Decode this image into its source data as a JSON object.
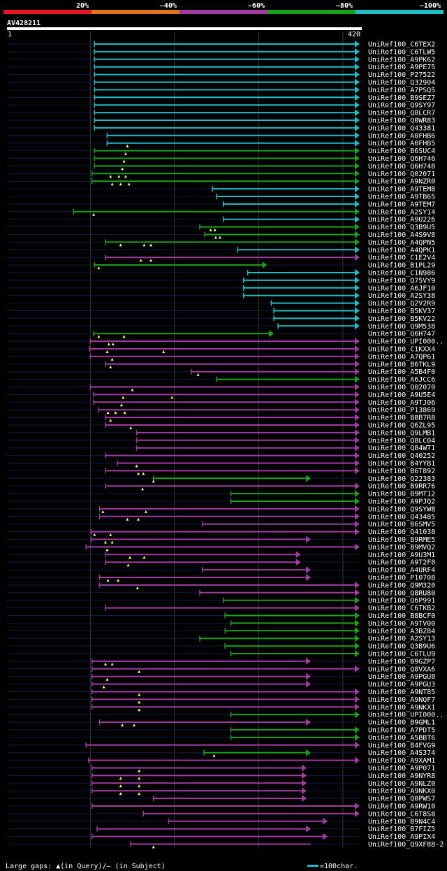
{
  "chart_data": {
    "type": "alignment-overview",
    "query": {
      "name": "AV428211",
      "start": 1,
      "end": 420
    },
    "identity_legend": {
      "bins": [
        {
          "label": "20%",
          "color": "#e8141e"
        },
        {
          "label": "~40%",
          "color": "#e0741e"
        },
        {
          "label": "~60%",
          "color": "#a03ca0"
        },
        {
          "label": "~80%",
          "color": "#1ca01c"
        },
        {
          "label": "~100%",
          "color": "#1ebec8"
        }
      ]
    },
    "gridlines_at": [
      100,
      200,
      300,
      400
    ],
    "footer": {
      "gaps_text": "Large gaps: ▲(in Query)/— (in Subject)",
      "scale_text": "=100char."
    },
    "hits": [
      {
        "label": "UniRef100_C6TEX2",
        "bin": 4,
        "start": 105,
        "end": 420,
        "arrow": true
      },
      {
        "label": "UniRef100_C6TLW5",
        "bin": 4,
        "start": 105,
        "end": 420,
        "arrow": true
      },
      {
        "label": "UniRef100_A9PK62",
        "bin": 4,
        "start": 105,
        "end": 420,
        "arrow": true
      },
      {
        "label": "UniRef100_A9PE75",
        "bin": 4,
        "start": 105,
        "end": 420,
        "arrow": true
      },
      {
        "label": "UniRef100_P27522",
        "bin": 4,
        "start": 105,
        "end": 420,
        "arrow": true
      },
      {
        "label": "UniRef100_Q32904",
        "bin": 4,
        "start": 105,
        "end": 420,
        "arrow": true
      },
      {
        "label": "UniRef100_A7PSQ5",
        "bin": 4,
        "start": 105,
        "end": 420,
        "arrow": true
      },
      {
        "label": "UniRef100_B9SEZ7",
        "bin": 4,
        "start": 105,
        "end": 420,
        "arrow": true
      },
      {
        "label": "UniRef100_Q9SY97",
        "bin": 4,
        "start": 105,
        "end": 420,
        "arrow": true
      },
      {
        "label": "UniRef100_Q8LCR7",
        "bin": 4,
        "start": 105,
        "end": 420,
        "arrow": true
      },
      {
        "label": "UniRef100_Q0WR83",
        "bin": 4,
        "start": 105,
        "end": 420,
        "arrow": true
      },
      {
        "label": "UniRef100_Q43381",
        "bin": 4,
        "start": 105,
        "end": 420,
        "arrow": true
      },
      {
        "label": "UniRef100_A0FHB6",
        "bin": 4,
        "start": 120,
        "end": 420,
        "arrow": true
      },
      {
        "label": "UniRef100_A0FHB5",
        "bin": 4,
        "start": 120,
        "end": 420,
        "arrow": true,
        "gaps": [
          144
        ]
      },
      {
        "label": "UniRef100_B6SUC4",
        "bin": 3,
        "start": 105,
        "end": 420,
        "arrow": true,
        "gaps": [
          142
        ]
      },
      {
        "label": "UniRef100_Q6H746",
        "bin": 3,
        "start": 105,
        "end": 420,
        "arrow": true,
        "gaps": [
          140
        ]
      },
      {
        "label": "UniRef100_Q6H748",
        "bin": 3,
        "start": 105,
        "end": 420,
        "arrow": true,
        "gaps": [
          138
        ]
      },
      {
        "label": "UniRef100_Q02071",
        "bin": 3,
        "start": 102,
        "end": 420,
        "arrow": true,
        "gaps": [
          124,
          134,
          142
        ]
      },
      {
        "label": "UniRef100_A9NZR0",
        "bin": 3,
        "start": 102,
        "end": 420,
        "arrow": true,
        "gaps": [
          126,
          136,
          146
        ]
      },
      {
        "label": "UniRef100_A9TEM8",
        "bin": 4,
        "start": 245,
        "end": 420,
        "arrow": true
      },
      {
        "label": "UniRef100_A9TB65",
        "bin": 4,
        "start": 250,
        "end": 420,
        "arrow": true
      },
      {
        "label": "UniRef100_A9TEM7",
        "bin": 4,
        "start": 258,
        "end": 420,
        "arrow": true
      },
      {
        "label": "UniRef100_A2SY14",
        "bin": 3,
        "start": 80,
        "end": 420,
        "arrow": true,
        "gaps": [
          104
        ]
      },
      {
        "label": "UniRef100_A9U226",
        "bin": 4,
        "start": 258,
        "end": 420,
        "arrow": true
      },
      {
        "label": "UniRef100_Q3B9U5",
        "bin": 3,
        "start": 230,
        "end": 420,
        "arrow": true,
        "gaps": [
          243,
          248
        ]
      },
      {
        "label": "UniRef100_A4S9V8",
        "bin": 3,
        "start": 236,
        "end": 420,
        "arrow": true,
        "gaps": [
          249,
          254
        ]
      },
      {
        "label": "UniRef100_A4QPN5",
        "bin": 3,
        "start": 118,
        "end": 420,
        "arrow": true,
        "gaps": [
          136,
          164,
          172
        ]
      },
      {
        "label": "UniRef100_A4QPK1",
        "bin": 4,
        "start": 275,
        "end": 420,
        "arrow": true
      },
      {
        "label": "UniRef100_C1E2V4",
        "bin": 2,
        "start": 118,
        "end": 420,
        "arrow": true,
        "gaps": [
          160,
          172
        ]
      },
      {
        "label": "UniRef100_B1PL29",
        "bin": 3,
        "start": 105,
        "end": 310,
        "arrow": true,
        "gaps": [
          110
        ]
      },
      {
        "label": "UniRef100_C1N986",
        "bin": 4,
        "start": 287,
        "end": 420,
        "arrow": true
      },
      {
        "label": "UniRef100_Q75VY9",
        "bin": 4,
        "start": 282,
        "end": 420,
        "arrow": true
      },
      {
        "label": "UniRef100_A6JF10",
        "bin": 4,
        "start": 282,
        "end": 420,
        "arrow": true
      },
      {
        "label": "UniRef100_A2SY38",
        "bin": 4,
        "start": 282,
        "end": 420,
        "arrow": true
      },
      {
        "label": "UniRef100_Q2V2R9",
        "bin": 4,
        "start": 315,
        "end": 420,
        "arrow": true
      },
      {
        "label": "UniRef100_B5KV37",
        "bin": 4,
        "start": 318,
        "end": 420,
        "arrow": true
      },
      {
        "label": "UniRef100_B5KV22",
        "bin": 4,
        "start": 318,
        "end": 420,
        "arrow": true
      },
      {
        "label": "UniRef100_Q9M538",
        "bin": 4,
        "start": 323,
        "end": 420,
        "arrow": true
      },
      {
        "label": "UniRef100_Q6H747",
        "bin": 3,
        "start": 104,
        "end": 318,
        "arrow": true,
        "gaps": [
          110,
          140
        ]
      },
      {
        "label": "UniRef100_UPI000..",
        "bin": 2,
        "start": 100,
        "end": 420,
        "arrow": true,
        "gaps": [
          122,
          127
        ]
      },
      {
        "label": "UniRef100_C1KXX4",
        "bin": 2,
        "start": 99,
        "end": 420,
        "arrow": true,
        "gaps": [
          120,
          187
        ]
      },
      {
        "label": "UniRef100_A7QP61",
        "bin": 2,
        "start": 100,
        "end": 420,
        "arrow": true,
        "gaps": [
          126
        ]
      },
      {
        "label": "UniRef100_B6TKL9",
        "bin": 2,
        "start": 118,
        "end": 420,
        "arrow": true,
        "gaps": [
          124
        ]
      },
      {
        "label": "UniRef100_A5B4F0",
        "bin": 2,
        "start": 220,
        "end": 420,
        "arrow": true,
        "gaps": [
          228
        ]
      },
      {
        "label": "UniRef100_A6JCC6",
        "bin": 3,
        "start": 250,
        "end": 420,
        "arrow": true
      },
      {
        "label": "UniRef100_Q02070",
        "bin": 2,
        "start": 100,
        "end": 420,
        "arrow": true,
        "gaps": [
          150
        ]
      },
      {
        "label": "UniRef100_A9U5E4",
        "bin": 2,
        "start": 104,
        "end": 420,
        "arrow": true,
        "gaps": [
          139,
          197
        ]
      },
      {
        "label": "UniRef100_A9TJ06",
        "bin": 2,
        "start": 104,
        "end": 420,
        "arrow": true,
        "gaps": [
          137
        ]
      },
      {
        "label": "UniRef100_P13869",
        "bin": 2,
        "start": 110,
        "end": 420,
        "arrow": true,
        "gaps": [
          121,
          130,
          141
        ]
      },
      {
        "label": "UniRef100_B8B7R8",
        "bin": 2,
        "start": 118,
        "end": 420,
        "arrow": true,
        "gaps": [
          124
        ]
      },
      {
        "label": "UniRef100_Q6ZL95",
        "bin": 2,
        "start": 118,
        "end": 420,
        "arrow": true,
        "gaps": [
          148
        ]
      },
      {
        "label": "UniRef100_Q9LMB1",
        "bin": 2,
        "start": 155,
        "end": 420,
        "arrow": true
      },
      {
        "label": "UniRef100_Q8LC04",
        "bin": 2,
        "start": 155,
        "end": 420,
        "arrow": true
      },
      {
        "label": "UniRef100_Q84WT1",
        "bin": 2,
        "start": 155,
        "end": 420,
        "arrow": true
      },
      {
        "label": "UniRef100_Q40252",
        "bin": 2,
        "start": 118,
        "end": 420,
        "arrow": true
      },
      {
        "label": "UniRef100_B4YYB1",
        "bin": 2,
        "start": 132,
        "end": 420,
        "arrow": true,
        "gaps": [
          155
        ]
      },
      {
        "label": "UniRef100_B6T892",
        "bin": 2,
        "start": 118,
        "end": 420,
        "arrow": true,
        "gaps": [
          157,
          163
        ]
      },
      {
        "label": "UniRef100_Q22383",
        "bin": 3,
        "start": 175,
        "end": 362,
        "arrow": true,
        "gaps": [
          175
        ]
      },
      {
        "label": "UniRef100_B9RR76",
        "bin": 2,
        "start": 118,
        "end": 420,
        "arrow": true,
        "gaps": [
          162
        ]
      },
      {
        "label": "UniRef100_B9MT12",
        "bin": 3,
        "start": 267,
        "end": 420,
        "arrow": true
      },
      {
        "label": "UniRef100_A9PJQ2",
        "bin": 3,
        "start": 267,
        "end": 420,
        "arrow": true
      },
      {
        "label": "UniRef100_Q9SYW8",
        "bin": 2,
        "start": 111,
        "end": 420,
        "arrow": true,
        "gaps": [
          115,
          166
        ]
      },
      {
        "label": "UniRef100_Q43485",
        "bin": 2,
        "start": 111,
        "end": 420,
        "arrow": true,
        "gaps": [
          144,
          157
        ]
      },
      {
        "label": "UniRef100_B6SMV5",
        "bin": 2,
        "start": 233,
        "end": 420,
        "arrow": true
      },
      {
        "label": "UniRef100_Q41038",
        "bin": 2,
        "start": 101,
        "end": 420,
        "arrow": true,
        "gaps": [
          105,
          124
        ]
      },
      {
        "label": "UniRef100_B9RME5",
        "bin": 2,
        "start": 101,
        "end": 362,
        "arrow": true,
        "gaps": [
          118,
          126
        ]
      },
      {
        "label": "UniRef100_B9MVQ2",
        "bin": 2,
        "start": 95,
        "end": 420,
        "arrow": true,
        "gaps": [
          120
        ]
      },
      {
        "label": "UniRef100_A9U3M1",
        "bin": 2,
        "start": 118,
        "end": 350,
        "arrow": true,
        "gaps": [
          147,
          164
        ]
      },
      {
        "label": "UniRef100_A9T2F8",
        "bin": 2,
        "start": 118,
        "end": 350,
        "arrow": true,
        "gaps": [
          145
        ]
      },
      {
        "label": "UniRef100_A4URF4",
        "bin": 2,
        "start": 233,
        "end": 362,
        "arrow": true
      },
      {
        "label": "UniRef100_P10708",
        "bin": 2,
        "start": 111,
        "end": 362,
        "arrow": true,
        "gaps": [
          121,
          133
        ]
      },
      {
        "label": "UniRef100_Q9M320",
        "bin": 2,
        "start": 111,
        "end": 420,
        "arrow": true,
        "gaps": [
          156
        ]
      },
      {
        "label": "UniRef100_Q8RU80",
        "bin": 2,
        "start": 230,
        "end": 420,
        "arrow": true
      },
      {
        "label": "UniRef100_Q6P991",
        "bin": 3,
        "start": 258,
        "end": 420,
        "arrow": true
      },
      {
        "label": "UniRef100_C6TKB2",
        "bin": 2,
        "start": 118,
        "end": 420,
        "arrow": true
      },
      {
        "label": "UniRef100_B8BCF0",
        "bin": 3,
        "start": 260,
        "end": 420,
        "arrow": true
      },
      {
        "label": "UniRef100_A9TV00",
        "bin": 3,
        "start": 267,
        "end": 420,
        "arrow": true
      },
      {
        "label": "UniRef100_A3BZ84",
        "bin": 3,
        "start": 260,
        "end": 420,
        "arrow": true
      },
      {
        "label": "UniRef100_A2SY13",
        "bin": 3,
        "start": 230,
        "end": 420,
        "arrow": true
      },
      {
        "label": "UniRef100_Q3B9U6",
        "bin": 3,
        "start": 260,
        "end": 420,
        "arrow": true
      },
      {
        "label": "UniRef100_C6TLU9",
        "bin": 3,
        "start": 267,
        "end": 420,
        "arrow": true
      },
      {
        "label": "UniRef100_B9GZP7",
        "bin": 2,
        "start": 102,
        "end": 362,
        "arrow": true,
        "gaps": [
          118,
          126
        ]
      },
      {
        "label": "UniRef100_Q8VXA6",
        "bin": 2,
        "start": 102,
        "end": 420,
        "arrow": true,
        "gaps": [
          158
        ]
      },
      {
        "label": "UniRef100_A9PGU8",
        "bin": 2,
        "start": 102,
        "end": 362,
        "arrow": true,
        "gaps": [
          120
        ]
      },
      {
        "label": "UniRef100_A9PGU3",
        "bin": 2,
        "start": 102,
        "end": 362,
        "arrow": true,
        "gaps": [
          116
        ]
      },
      {
        "label": "UniRef100_A9NT85",
        "bin": 2,
        "start": 102,
        "end": 420,
        "arrow": true,
        "gaps": [
          158
        ]
      },
      {
        "label": "UniRef100_A9NQF7",
        "bin": 2,
        "start": 102,
        "end": 420,
        "arrow": true,
        "gaps": [
          158
        ]
      },
      {
        "label": "UniRef100_A9NKX1",
        "bin": 2,
        "start": 102,
        "end": 420,
        "arrow": true,
        "gaps": [
          158
        ]
      },
      {
        "label": "UniRef100_UPI000..",
        "bin": 3,
        "start": 267,
        "end": 420,
        "arrow": true
      },
      {
        "label": "UniRef100_B9GML1",
        "bin": 2,
        "start": 111,
        "end": 362,
        "arrow": true,
        "gaps": [
          138,
          152
        ]
      },
      {
        "label": "UniRef100_A7PDT5",
        "bin": 3,
        "start": 267,
        "end": 420,
        "arrow": true
      },
      {
        "label": "UniRef100_A5BBT6",
        "bin": 3,
        "start": 267,
        "end": 420,
        "arrow": true
      },
      {
        "label": "UniRef100_B4FVG9",
        "bin": 2,
        "start": 95,
        "end": 420,
        "arrow": true
      },
      {
        "label": "UniRef100_A4S374",
        "bin": 3,
        "start": 235,
        "end": 362,
        "arrow": true,
        "gaps": [
          247
        ]
      },
      {
        "label": "UniRef100_A9XAM1",
        "bin": 2,
        "start": 98,
        "end": 420,
        "arrow": true
      },
      {
        "label": "UniRef100_A9P071",
        "bin": 2,
        "start": 102,
        "end": 357,
        "arrow": true,
        "gaps": [
          158
        ]
      },
      {
        "label": "UniRef100_A9NYR8",
        "bin": 2,
        "start": 102,
        "end": 357,
        "arrow": true,
        "gaps": [
          136,
          158
        ]
      },
      {
        "label": "UniRef100_A9NLZ0",
        "bin": 2,
        "start": 102,
        "end": 357,
        "arrow": true,
        "gaps": [
          136,
          158
        ]
      },
      {
        "label": "UniRef100_A9NKX0",
        "bin": 2,
        "start": 102,
        "end": 357,
        "arrow": true,
        "gaps": [
          136,
          158
        ]
      },
      {
        "label": "UniRef100_Q0PWS7",
        "bin": 2,
        "start": 175,
        "end": 357,
        "arrow": true
      },
      {
        "label": "UniRef100_A9RW10",
        "bin": 2,
        "start": 102,
        "end": 420,
        "arrow": true
      },
      {
        "label": "UniRef100_C6T8S8",
        "bin": 2,
        "start": 163,
        "end": 420,
        "arrow": true
      },
      {
        "label": "UniRef100_B9N4C4",
        "bin": 2,
        "start": 193,
        "end": 382,
        "arrow": true
      },
      {
        "label": "UniRef100_B7FIZ5",
        "bin": 2,
        "start": 108,
        "end": 362,
        "arrow": true
      },
      {
        "label": "UniRef100_A9PIX4",
        "bin": 2,
        "start": 102,
        "end": 382,
        "arrow": true
      },
      {
        "label": "UniRef100_Q9XF88-2",
        "bin": 2,
        "start": 148,
        "end": 362,
        "arrow": false,
        "gaps": [
          175
        ]
      }
    ]
  }
}
